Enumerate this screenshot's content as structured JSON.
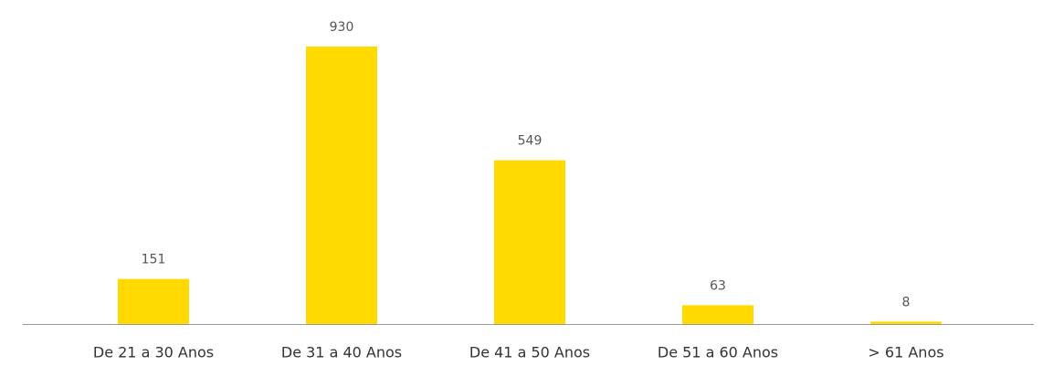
{
  "chart_data": {
    "type": "bar",
    "categories": [
      "De 21 a 30 Anos",
      "De 31 a 40 Anos",
      "De 41 a 50 Anos",
      "De 51 a 60 Anos",
      "> 61 Anos"
    ],
    "values": [
      151,
      930,
      549,
      63,
      8
    ],
    "color": "#ffd900"
  }
}
